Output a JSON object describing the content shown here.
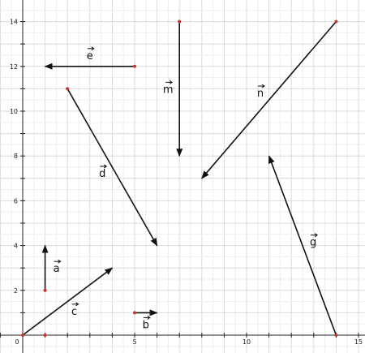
{
  "chart_data": {
    "type": "vector_plot",
    "xlim": [
      -1,
      15
    ],
    "ylim": [
      -1,
      14.5
    ],
    "x_ticks": [
      0,
      5,
      10,
      15
    ],
    "y_ticks": [
      2,
      4,
      6,
      8,
      10,
      12,
      14
    ],
    "grid": true,
    "vectors": [
      {
        "name": "a",
        "tail": [
          1,
          2
        ],
        "head": [
          1,
          4
        ]
      },
      {
        "name": "b",
        "tail": [
          5,
          1
        ],
        "head": [
          6,
          1
        ]
      },
      {
        "name": "c",
        "tail": [
          0,
          0
        ],
        "head": [
          4,
          3
        ]
      },
      {
        "name": "d",
        "tail": [
          2,
          11
        ],
        "head": [
          6,
          4
        ]
      },
      {
        "name": "e",
        "tail": [
          5,
          12
        ],
        "head": [
          1,
          12
        ]
      },
      {
        "name": "m",
        "tail": [
          7,
          14
        ],
        "head": [
          7,
          8
        ]
      },
      {
        "name": "n",
        "tail": [
          14,
          14
        ],
        "head": [
          8,
          7
        ]
      },
      {
        "name": "g",
        "tail": [
          14,
          0
        ],
        "head": [
          11,
          8
        ]
      }
    ],
    "extra_points": [
      [
        1,
        0
      ]
    ]
  }
}
